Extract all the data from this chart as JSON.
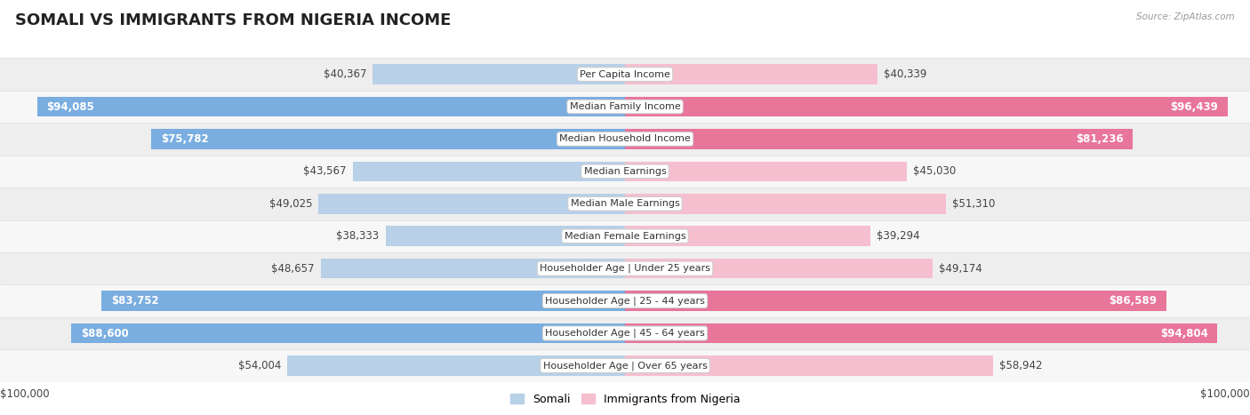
{
  "title": "SOMALI VS IMMIGRANTS FROM NIGERIA INCOME",
  "source": "Source: ZipAtlas.com",
  "categories": [
    "Per Capita Income",
    "Median Family Income",
    "Median Household Income",
    "Median Earnings",
    "Median Male Earnings",
    "Median Female Earnings",
    "Householder Age | Under 25 years",
    "Householder Age | 25 - 44 years",
    "Householder Age | 45 - 64 years",
    "Householder Age | Over 65 years"
  ],
  "somali_values": [
    40367,
    94085,
    75782,
    43567,
    49025,
    38333,
    48657,
    83752,
    88600,
    54004
  ],
  "nigeria_values": [
    40339,
    96439,
    81236,
    45030,
    51310,
    39294,
    49174,
    86589,
    94804,
    58942
  ],
  "somali_labels": [
    "$40,367",
    "$94,085",
    "$75,782",
    "$43,567",
    "$49,025",
    "$38,333",
    "$48,657",
    "$83,752",
    "$88,600",
    "$54,004"
  ],
  "nigeria_labels": [
    "$40,339",
    "$96,439",
    "$81,236",
    "$45,030",
    "$51,310",
    "$39,294",
    "$49,174",
    "$86,589",
    "$94,804",
    "$58,942"
  ],
  "max_value": 100000,
  "somali_color_light": "#b8d0e8",
  "somali_color_dark": "#7aade0",
  "nigeria_color_light": "#f5bfcf",
  "nigeria_color_dark": "#e8759a",
  "bg_color": "#ffffff",
  "row_bg_light": "#f7f7f7",
  "row_bg_dark": "#eeeeee",
  "title_fontsize": 13,
  "label_fontsize": 8.5,
  "category_fontsize": 8,
  "legend_fontsize": 9,
  "bar_height": 0.62,
  "xlabel_left": "$100,000",
  "xlabel_right": "$100,000",
  "inside_label_threshold": 65000
}
